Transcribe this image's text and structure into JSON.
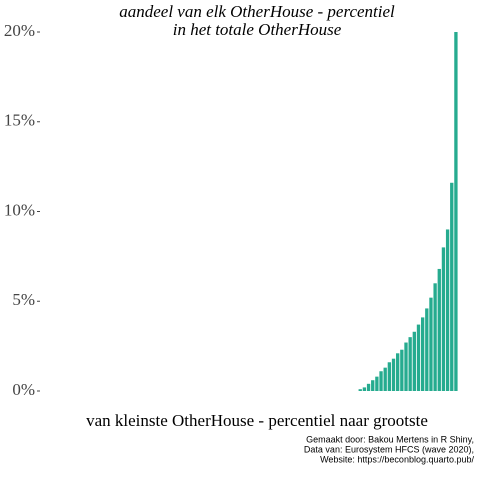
{
  "chart_data": {
    "type": "bar",
    "title": [
      "aandeel van elk OtherHouse - percentiel",
      "in het totale OtherHouse"
    ],
    "x_label": "van kleinste OtherHouse - percentiel naar grootste",
    "caption": [
      "Gemaakt door: Bakou Mertens in R Shiny,",
      "Data van: Eurosystem HFCS (wave 2020),",
      "Website: https://beconblog.quarto.pub/"
    ],
    "color": "#26ab8f",
    "values": [
      0,
      0,
      0,
      0,
      0,
      0,
      0,
      0,
      0,
      0,
      0,
      0,
      0,
      0,
      0,
      0,
      0,
      0,
      0,
      0,
      0,
      0,
      0,
      0,
      0,
      0,
      0,
      0,
      0,
      0,
      0,
      0,
      0,
      0,
      0,
      0,
      0,
      0,
      0,
      0,
      0,
      0,
      0,
      0,
      0,
      0,
      0,
      0,
      0,
      0,
      0,
      0,
      0,
      0,
      0,
      0,
      0,
      0,
      0,
      0,
      0,
      0,
      0,
      0,
      0,
      0,
      0,
      0,
      0,
      0,
      0,
      0,
      0,
      0,
      0,
      0,
      0.1,
      0.2,
      0.4,
      0.6,
      0.8,
      1.1,
      1.3,
      1.6,
      1.8,
      2.1,
      2.3,
      2.7,
      3.0,
      3.3,
      3.7,
      4.1,
      4.6,
      5.2,
      6.0,
      6.8,
      8.0,
      9.0,
      11.6,
      20.0
    ],
    "ylim": [
      0,
      20
    ],
    "yticks": [
      {
        "value": 0,
        "label": "0%"
      },
      {
        "value": 5,
        "label": "5%"
      },
      {
        "value": 10,
        "label": "10%"
      },
      {
        "value": 15,
        "label": "15%"
      },
      {
        "value": 20,
        "label": "20%"
      }
    ],
    "grid": false
  }
}
